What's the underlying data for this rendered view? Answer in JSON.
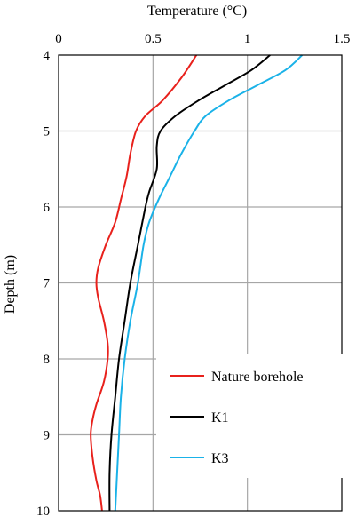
{
  "chart_data": {
    "type": "line",
    "xlabel": "Temperature (°C)",
    "ylabel": "Depth (m)",
    "xlim": [
      0,
      1.5
    ],
    "ylim": [
      4,
      10
    ],
    "x_ticks": [
      "0",
      "0.5",
      "1",
      "1.5"
    ],
    "y_ticks": [
      "4",
      "5",
      "6",
      "7",
      "8",
      "9",
      "10"
    ],
    "x_axis_position": "top",
    "y_axis_inverted": true,
    "grid": true,
    "legend_position": "bottom-right",
    "series": [
      {
        "name": "Nature borehole",
        "color": "#e8211c",
        "depth": [
          4.0,
          4.3,
          4.6,
          4.8,
          5.0,
          5.3,
          5.6,
          5.9,
          6.2,
          6.5,
          6.8,
          7.0,
          7.2,
          7.5,
          7.8,
          8.0,
          8.3,
          8.6,
          8.8,
          9.0,
          9.3,
          9.6,
          9.8,
          10.0
        ],
        "temperature": [
          0.73,
          0.65,
          0.55,
          0.46,
          0.41,
          0.38,
          0.36,
          0.33,
          0.3,
          0.25,
          0.21,
          0.2,
          0.21,
          0.24,
          0.26,
          0.26,
          0.24,
          0.2,
          0.18,
          0.17,
          0.18,
          0.2,
          0.22,
          0.23
        ]
      },
      {
        "name": "K1",
        "color": "#000000",
        "depth": [
          4.0,
          4.2,
          4.4,
          4.6,
          4.8,
          5.0,
          5.2,
          5.5,
          5.8,
          6.0,
          6.5,
          7.0,
          7.5,
          8.0,
          8.5,
          9.0,
          9.5,
          10.0
        ],
        "temperature": [
          1.12,
          1.02,
          0.88,
          0.74,
          0.62,
          0.54,
          0.52,
          0.52,
          0.48,
          0.46,
          0.42,
          0.38,
          0.35,
          0.32,
          0.3,
          0.28,
          0.27,
          0.27
        ]
      },
      {
        "name": "K3",
        "color": "#1ab2e8",
        "depth": [
          4.0,
          4.2,
          4.4,
          4.6,
          4.8,
          5.0,
          5.3,
          5.6,
          5.9,
          6.2,
          6.5,
          7.0,
          7.5,
          8.0,
          8.5,
          9.0,
          9.5,
          10.0
        ],
        "temperature": [
          1.29,
          1.2,
          1.05,
          0.9,
          0.78,
          0.72,
          0.65,
          0.59,
          0.53,
          0.48,
          0.45,
          0.42,
          0.38,
          0.35,
          0.33,
          0.32,
          0.31,
          0.3
        ]
      }
    ]
  }
}
